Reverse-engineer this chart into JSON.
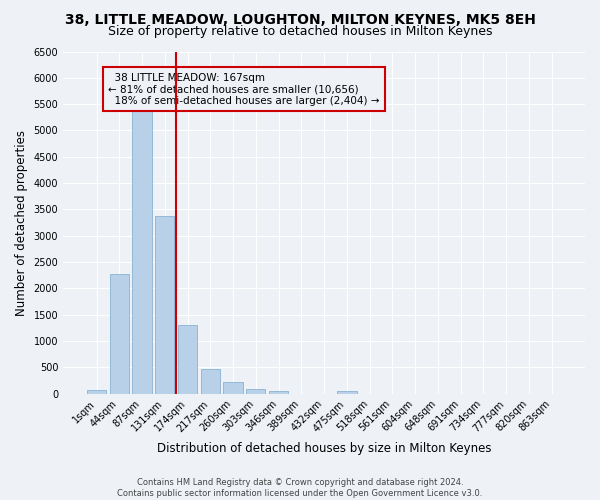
{
  "title": "38, LITTLE MEADOW, LOUGHTON, MILTON KEYNES, MK5 8EH",
  "subtitle": "Size of property relative to detached houses in Milton Keynes",
  "xlabel": "Distribution of detached houses by size in Milton Keynes",
  "ylabel": "Number of detached properties",
  "footer_line1": "Contains HM Land Registry data © Crown copyright and database right 2024.",
  "footer_line2": "Contains public sector information licensed under the Open Government Licence v3.0.",
  "categories": [
    "1sqm",
    "44sqm",
    "87sqm",
    "131sqm",
    "174sqm",
    "217sqm",
    "260sqm",
    "303sqm",
    "346sqm",
    "389sqm",
    "432sqm",
    "475sqm",
    "518sqm",
    "561sqm",
    "604sqm",
    "648sqm",
    "691sqm",
    "734sqm",
    "777sqm",
    "820sqm",
    "863sqm"
  ],
  "bar_values": [
    70,
    2280,
    5420,
    3380,
    1310,
    475,
    215,
    90,
    50,
    0,
    0,
    55,
    0,
    0,
    0,
    0,
    0,
    0,
    0,
    0,
    0
  ],
  "bar_color": "#b8d0e8",
  "bar_edge_color": "#7aaad0",
  "vline_x_index": 3.5,
  "vline_label": "38 LITTLE MEADOW: 167sqm",
  "pct_smaller": "81% of detached houses are smaller (10,656)",
  "pct_larger": "18% of semi-detached houses are larger (2,404)",
  "vline_color": "#cc0000",
  "annotation_box_color": "#cc0000",
  "ylim": [
    0,
    6500
  ],
  "yticks": [
    0,
    500,
    1000,
    1500,
    2000,
    2500,
    3000,
    3500,
    4000,
    4500,
    5000,
    5500,
    6000,
    6500
  ],
  "bg_color": "#eef2f7",
  "grid_color": "#ffffff",
  "title_fontsize": 10,
  "subtitle_fontsize": 9,
  "axis_label_fontsize": 8.5,
  "tick_fontsize": 7,
  "annotation_fontsize": 7.5,
  "footer_fontsize": 6
}
